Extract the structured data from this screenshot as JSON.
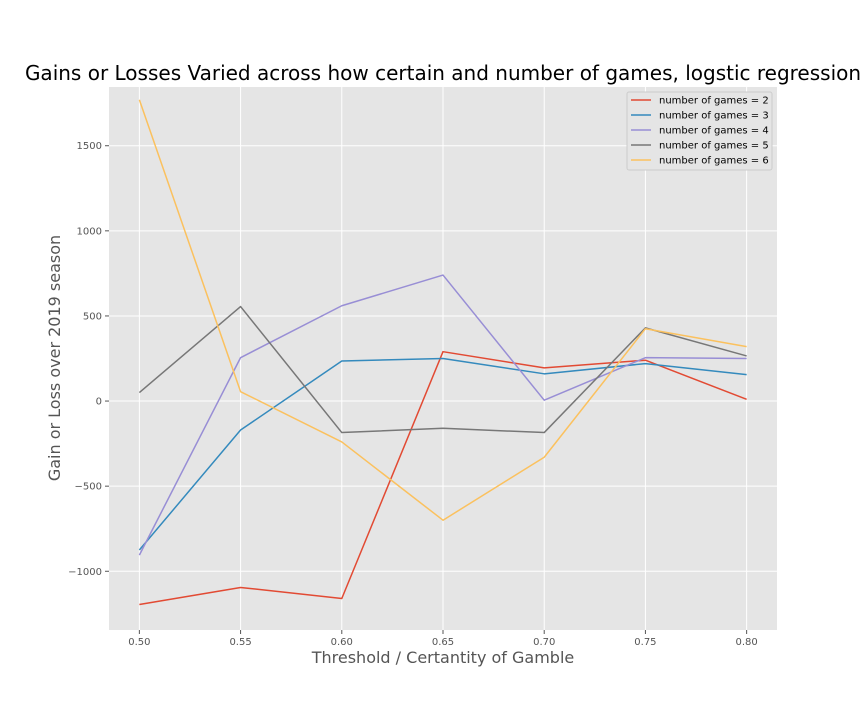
{
  "chart_data": {
    "type": "line",
    "title": "Gains or Losses Varied across how certain and number of games, logstic regression",
    "xlabel": "Threshold / Certantity of Gamble",
    "ylabel": "Gain or Loss over 2019 season",
    "x": [
      0.5,
      0.55,
      0.6,
      0.65,
      0.7,
      0.75,
      0.8
    ],
    "x_tick_labels": [
      "0.50",
      "0.55",
      "0.60",
      "0.65",
      "0.70",
      "0.75",
      "0.80"
    ],
    "y_ticks": [
      -1000,
      -500,
      0,
      500,
      1000,
      1500
    ],
    "y_tick_labels": [
      "−1000",
      "−500",
      "0",
      "500",
      "1000",
      "1500"
    ],
    "xlim": [
      0.485,
      0.815
    ],
    "ylim": [
      -1345,
      1845
    ],
    "grid": true,
    "legend_position": "top-right",
    "series": [
      {
        "name": "number of games = 2",
        "color": "#E24A33",
        "values": [
          -1195,
          -1095,
          -1160,
          290,
          195,
          240,
          10
        ]
      },
      {
        "name": "number of games = 3",
        "color": "#348ABD",
        "values": [
          -875,
          -170,
          235,
          250,
          160,
          220,
          155
        ]
      },
      {
        "name": "number of games = 4",
        "color": "#988ED5",
        "values": [
          -905,
          255,
          560,
          740,
          5,
          255,
          250
        ]
      },
      {
        "name": "number of games = 5",
        "color": "#777777",
        "values": [
          50,
          555,
          -185,
          -160,
          -185,
          430,
          265
        ]
      },
      {
        "name": "number of games = 6",
        "color": "#FBC15E",
        "values": [
          1770,
          55,
          -240,
          -700,
          -330,
          425,
          320
        ]
      }
    ]
  }
}
